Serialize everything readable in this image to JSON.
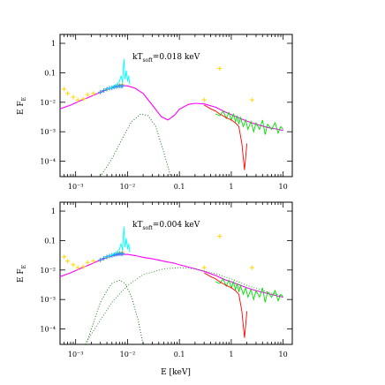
{
  "chart_data": [
    {
      "type": "line",
      "annotation": "kT_soft=0.018 keV",
      "annotation_main": "kT",
      "annotation_sub": "soft",
      "annotation_value": "=0.018 keV",
      "xlabel": "",
      "ylabel": "E F_E",
      "ylabel_main": "E F",
      "ylabel_sub": "E",
      "xscale": "log",
      "yscale": "log",
      "xlim": [
        0.0005,
        15
      ],
      "ylim": [
        3e-05,
        2
      ],
      "x_ticks": [
        {
          "value": 0.001,
          "label": "10⁻³"
        },
        {
          "value": 0.01,
          "label": "10⁻²"
        },
        {
          "value": 0.1,
          "label": "0.1"
        },
        {
          "value": 1,
          "label": "1"
        },
        {
          "value": 10,
          "label": "10"
        }
      ],
      "y_ticks": [
        {
          "value": 1,
          "label": "1"
        },
        {
          "value": 0.1,
          "label": "0.1"
        },
        {
          "value": 0.01,
          "label": "10⁻²"
        },
        {
          "value": 0.001,
          "label": "10⁻³"
        },
        {
          "value": 0.0001,
          "label": "10⁻⁴"
        }
      ],
      "series": [
        {
          "kind": "model_total",
          "color": "#ff00ff",
          "x": [
            0.0005,
            0.0008,
            0.0012,
            0.002,
            0.003,
            0.005,
            0.007,
            0.01,
            0.014,
            0.02,
            0.03,
            0.045,
            0.06,
            0.08,
            0.1,
            0.15,
            0.2,
            0.3,
            0.5,
            0.8,
            1,
            1.5,
            2,
            3,
            5,
            8,
            10
          ],
          "y": [
            0.006,
            0.008,
            0.011,
            0.016,
            0.022,
            0.031,
            0.036,
            0.036,
            0.03,
            0.02,
            0.008,
            0.0032,
            0.0025,
            0.0036,
            0.0058,
            0.0085,
            0.0092,
            0.0088,
            0.0068,
            0.0045,
            0.0038,
            0.0028,
            0.0023,
            0.0018,
            0.0014,
            0.0012,
            0.0011
          ]
        },
        {
          "kind": "soft_component",
          "color": "#006400",
          "dash": "1,2",
          "x": [
            0.003,
            0.005,
            0.008,
            0.012,
            0.018,
            0.025,
            0.035,
            0.05,
            0.065,
            0.08
          ],
          "y": [
            3e-05,
            0.00012,
            0.0006,
            0.0022,
            0.004,
            0.0035,
            0.0015,
            0.0002,
            4e-05,
            1e-05
          ]
        },
        {
          "kind": "data_optical_uv",
          "color": "#ffd700",
          "style": "plus",
          "x": [
            0.0006,
            0.0007,
            0.0009,
            0.0011,
            0.0014,
            0.0017,
            0.0022,
            0.003,
            0.004,
            0.005,
            0.006,
            0.007,
            0.008,
            0.6,
            0.3,
            2.5
          ],
          "y": [
            0.028,
            0.02,
            0.015,
            0.012,
            0.013,
            0.018,
            0.02,
            0.022,
            0.027,
            0.031,
            0.034,
            0.038,
            0.04,
            0.14,
            0.012,
            0.012
          ]
        },
        {
          "kind": "data_uv_blue",
          "color": "#1e90ff",
          "style": "plus",
          "x": [
            0.003,
            0.0035,
            0.004,
            0.0045,
            0.005,
            0.0055,
            0.006,
            0.0065,
            0.007,
            0.0075,
            0.008
          ],
          "y": [
            0.022,
            0.025,
            0.028,
            0.03,
            0.031,
            0.033,
            0.034,
            0.035,
            0.036,
            0.035,
            0.036
          ]
        },
        {
          "kind": "data_cyan",
          "color": "#00ffff",
          "style": "line",
          "x": [
            0.004,
            0.005,
            0.006,
            0.007,
            0.0075,
            0.008,
            0.0085,
            0.009,
            0.0095,
            0.01,
            0.0105,
            0.011
          ],
          "y": [
            0.028,
            0.032,
            0.04,
            0.05,
            0.08,
            0.045,
            0.3,
            0.06,
            0.12,
            0.05,
            0.08,
            0.04
          ]
        },
        {
          "kind": "data_xray_green",
          "color": "#00dd00",
          "style": "line",
          "x": [
            0.5,
            0.6,
            0.7,
            0.8,
            0.9,
            1,
            1.1,
            1.2,
            1.3,
            1.4,
            1.5,
            1.7,
            1.9,
            2.1,
            2.4,
            2.7,
            3,
            3.5,
            4,
            4.5,
            5,
            6,
            7,
            8,
            9,
            10
          ],
          "y": [
            0.004,
            0.0035,
            0.005,
            0.0028,
            0.0045,
            0.0025,
            0.004,
            0.0022,
            0.0035,
            0.0018,
            0.003,
            0.0015,
            0.0025,
            0.0012,
            0.0022,
            0.001,
            0.002,
            0.0012,
            0.0025,
            0.0008,
            0.0018,
            0.0012,
            0.002,
            0.0009,
            0.0015,
            0.0012
          ]
        },
        {
          "kind": "data_xray_red",
          "color": "#ff0000",
          "style": "line",
          "x": [
            0.3,
            0.4,
            0.5,
            0.6,
            0.8,
            1,
            1.2,
            1.4,
            1.6,
            1.8,
            2
          ],
          "y": [
            0.008,
            0.006,
            0.005,
            0.004,
            0.003,
            0.0025,
            0.002,
            0.0015,
            0.0004,
            5e-05,
            0.0004
          ]
        }
      ]
    },
    {
      "type": "line",
      "annotation": "kT_soft=0.004 keV",
      "annotation_main": "kT",
      "annotation_sub": "soft",
      "annotation_value": "=0.004 keV",
      "xlabel": "E [keV]",
      "ylabel": "E F_E",
      "ylabel_main": "E F",
      "ylabel_sub": "E",
      "xscale": "log",
      "yscale": "log",
      "xlim": [
        0.0005,
        15
      ],
      "ylim": [
        3e-05,
        2
      ],
      "x_ticks": [
        {
          "value": 0.001,
          "label": "10⁻³"
        },
        {
          "value": 0.01,
          "label": "10⁻²"
        },
        {
          "value": 0.1,
          "label": "0.1"
        },
        {
          "value": 1,
          "label": "1"
        },
        {
          "value": 10,
          "label": "10"
        }
      ],
      "y_ticks": [
        {
          "value": 1,
          "label": "1"
        },
        {
          "value": 0.1,
          "label": "0.1"
        },
        {
          "value": 0.01,
          "label": "10⁻²"
        },
        {
          "value": 0.001,
          "label": "10⁻³"
        },
        {
          "value": 0.0001,
          "label": "10⁻⁴"
        }
      ],
      "series": [
        {
          "kind": "model_total",
          "color": "#ff00ff",
          "x": [
            0.0005,
            0.0008,
            0.0012,
            0.002,
            0.003,
            0.005,
            0.007,
            0.01,
            0.014,
            0.02,
            0.03,
            0.05,
            0.08,
            0.1,
            0.2,
            0.3,
            0.5,
            0.8,
            1,
            2,
            3,
            5,
            8,
            10
          ],
          "y": [
            0.006,
            0.008,
            0.011,
            0.016,
            0.022,
            0.03,
            0.034,
            0.034,
            0.031,
            0.027,
            0.024,
            0.02,
            0.017,
            0.015,
            0.011,
            0.009,
            0.0065,
            0.0045,
            0.004,
            0.0025,
            0.002,
            0.0016,
            0.0013,
            0.0012
          ]
        },
        {
          "kind": "soft_component",
          "color": "#006400",
          "dash": "1,2",
          "x": [
            0.0015,
            0.002,
            0.003,
            0.004,
            0.005,
            0.007,
            0.009,
            0.012,
            0.016,
            0.02,
            0.025
          ],
          "y": [
            2e-05,
            0.0001,
            0.0008,
            0.002,
            0.0035,
            0.0045,
            0.0035,
            0.0012,
            0.0002,
            3e-05,
            5e-06
          ]
        },
        {
          "kind": "hard_component",
          "color": "#228b22",
          "dash": "1,2",
          "x": [
            0.0015,
            0.003,
            0.005,
            0.01,
            0.02,
            0.05,
            0.1,
            0.2,
            0.5,
            1,
            2,
            5,
            10
          ],
          "y": [
            3e-05,
            0.0002,
            0.0008,
            0.003,
            0.007,
            0.011,
            0.012,
            0.011,
            0.0075,
            0.005,
            0.003,
            0.0018,
            0.0013
          ]
        },
        {
          "kind": "data_optical_uv",
          "color": "#ffd700",
          "style": "plus",
          "x": [
            0.0006,
            0.0007,
            0.0009,
            0.0011,
            0.0014,
            0.0017,
            0.0022,
            0.003,
            0.004,
            0.005,
            0.006,
            0.007,
            0.008,
            0.6,
            0.3,
            2.5
          ],
          "y": [
            0.028,
            0.02,
            0.015,
            0.012,
            0.013,
            0.018,
            0.02,
            0.022,
            0.027,
            0.031,
            0.034,
            0.038,
            0.04,
            0.14,
            0.012,
            0.012
          ]
        },
        {
          "kind": "data_uv_blue",
          "color": "#1e90ff",
          "style": "plus",
          "x": [
            0.003,
            0.0035,
            0.004,
            0.0045,
            0.005,
            0.0055,
            0.006,
            0.0065,
            0.007,
            0.0075,
            0.008
          ],
          "y": [
            0.022,
            0.025,
            0.028,
            0.03,
            0.031,
            0.033,
            0.034,
            0.035,
            0.036,
            0.035,
            0.036
          ]
        },
        {
          "kind": "data_cyan",
          "color": "#00ffff",
          "style": "line",
          "x": [
            0.004,
            0.005,
            0.006,
            0.007,
            0.0075,
            0.008,
            0.0085,
            0.009,
            0.0095,
            0.01,
            0.0105,
            0.011
          ],
          "y": [
            0.028,
            0.032,
            0.04,
            0.05,
            0.08,
            0.045,
            0.3,
            0.06,
            0.12,
            0.05,
            0.08,
            0.04
          ]
        },
        {
          "kind": "data_xray_green",
          "color": "#00dd00",
          "style": "line",
          "x": [
            0.5,
            0.6,
            0.7,
            0.8,
            0.9,
            1,
            1.1,
            1.2,
            1.3,
            1.4,
            1.5,
            1.7,
            1.9,
            2.1,
            2.4,
            2.7,
            3,
            3.5,
            4,
            4.5,
            5,
            6,
            7,
            8,
            9,
            10
          ],
          "y": [
            0.004,
            0.0035,
            0.005,
            0.0028,
            0.0045,
            0.0025,
            0.004,
            0.0022,
            0.0035,
            0.0018,
            0.003,
            0.0015,
            0.0025,
            0.0012,
            0.0022,
            0.001,
            0.002,
            0.0012,
            0.0025,
            0.0008,
            0.0018,
            0.0012,
            0.002,
            0.0009,
            0.0015,
            0.0012
          ]
        },
        {
          "kind": "data_xray_red",
          "color": "#ff0000",
          "style": "line",
          "x": [
            0.3,
            0.4,
            0.5,
            0.6,
            0.8,
            1,
            1.2,
            1.4,
            1.6,
            1.8,
            2
          ],
          "y": [
            0.008,
            0.006,
            0.005,
            0.004,
            0.003,
            0.0025,
            0.002,
            0.0015,
            0.0004,
            5e-05,
            0.0004
          ]
        }
      ]
    }
  ]
}
